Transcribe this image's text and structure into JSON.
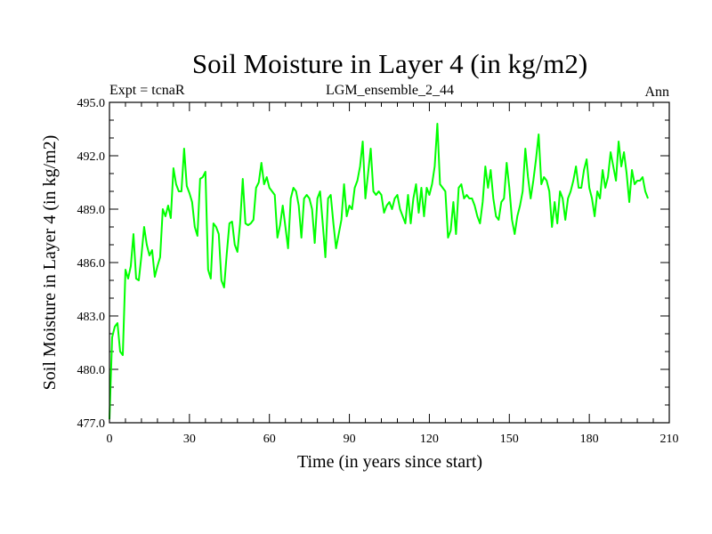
{
  "chart_data": {
    "type": "line",
    "title": "Soil Moisture in Layer 4 (in kg/m2)",
    "subtitle_left": "Expt = tcnaR",
    "subtitle_center": "LGM_ensemble_2_44",
    "subtitle_right": "Ann",
    "xlabel": "Time (in years since start)",
    "ylabel": "Soil Moisture in Layer 4 (in kg/m2)",
    "xlim": [
      0,
      210
    ],
    "ylim": [
      477.0,
      495.0
    ],
    "x_ticks": [
      "0",
      "30",
      "60",
      "90",
      "120",
      "150",
      "180",
      "210"
    ],
    "y_ticks": [
      "477.0",
      "480.0",
      "483.0",
      "486.0",
      "489.0",
      "492.0",
      "495.0"
    ],
    "line_color": "#00ff00",
    "series": [
      {
        "name": "Soil Moisture",
        "x_start": 0,
        "x_step": 1,
        "values": [
          477.2,
          481.8,
          482.4,
          482.6,
          481.0,
          480.8,
          485.6,
          485.1,
          485.8,
          487.6,
          485.1,
          485.0,
          486.4,
          488.0,
          487.0,
          486.4,
          486.7,
          485.2,
          485.8,
          486.3,
          489.0,
          488.6,
          489.2,
          488.5,
          491.3,
          490.4,
          490.0,
          490.0,
          492.4,
          490.3,
          489.9,
          489.4,
          488.0,
          487.5,
          490.7,
          490.8,
          491.1,
          485.6,
          485.1,
          488.2,
          488.0,
          487.6,
          485.0,
          484.6,
          486.5,
          488.2,
          488.3,
          487.0,
          486.6,
          488.2,
          490.7,
          488.2,
          488.1,
          488.2,
          488.4,
          490.2,
          490.5,
          491.6,
          490.4,
          490.8,
          490.2,
          490.0,
          489.8,
          487.4,
          488.1,
          489.2,
          488.0,
          486.8,
          489.6,
          490.2,
          490.0,
          489.2,
          487.4,
          489.6,
          489.8,
          489.6,
          489.0,
          487.1,
          489.6,
          490.0,
          488.2,
          486.3,
          489.6,
          489.8,
          488.2,
          486.8,
          487.6,
          488.4,
          490.4,
          488.6,
          489.2,
          489.0,
          490.2,
          490.6,
          491.4,
          492.8,
          489.6,
          491.0,
          492.4,
          490.0,
          489.8,
          490.0,
          489.8,
          488.8,
          489.2,
          489.4,
          489.0,
          489.6,
          489.8,
          489.0,
          488.6,
          488.2,
          489.8,
          488.2,
          489.6,
          490.4,
          488.8,
          490.2,
          488.6,
          490.2,
          489.8,
          490.4,
          491.4,
          493.8,
          490.4,
          490.2,
          490.0,
          487.4,
          487.8,
          489.4,
          487.6,
          490.2,
          490.4,
          489.6,
          489.8,
          489.6,
          489.6,
          489.2,
          488.6,
          488.2,
          489.4,
          491.4,
          490.2,
          491.2,
          489.6,
          488.6,
          488.4,
          489.4,
          489.6,
          491.6,
          490.2,
          488.4,
          487.6,
          488.6,
          489.2,
          490.0,
          492.4,
          490.8,
          489.6,
          490.6,
          491.8,
          493.2,
          490.4,
          490.8,
          490.6,
          490.0,
          488.0,
          489.4,
          488.2,
          490.0,
          489.6,
          488.4,
          489.6,
          490.0,
          490.6,
          491.4,
          490.2,
          490.2,
          491.2,
          491.8,
          490.2,
          489.6,
          488.6,
          490.0,
          489.6,
          491.2,
          490.2,
          490.8,
          492.2,
          491.4,
          490.6,
          492.8,
          491.4,
          492.2,
          491.0,
          489.4,
          491.2,
          490.4,
          490.6,
          490.6,
          490.8,
          490.0,
          489.6
        ]
      }
    ]
  }
}
